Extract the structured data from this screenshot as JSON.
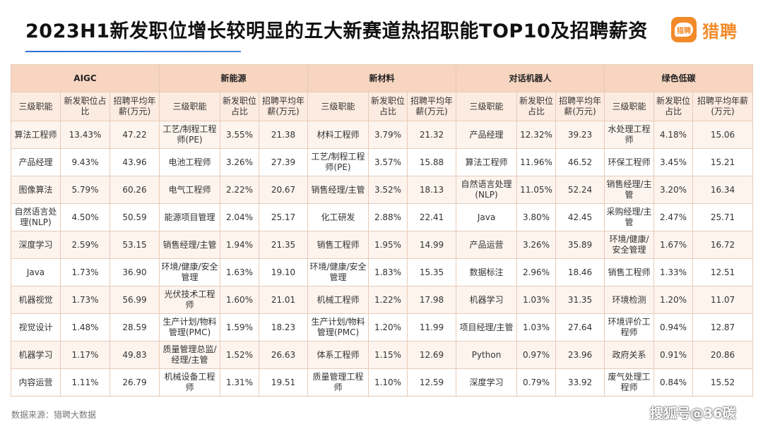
{
  "title": "2023H1新发职位增长较明显的五大新赛道热招职能TOP10及招聘薪资",
  "brand": {
    "logo_text": "猎聘",
    "name": "猎聘",
    "color": "#f28a2a"
  },
  "table": {
    "groups": [
      {
        "name": "AIGC",
        "subheaders": [
          "三级职能",
          "新发职位占比",
          "招聘平均年薪(万元)"
        ],
        "rows": [
          [
            "算法工程师",
            "13.43%",
            "47.22"
          ],
          [
            "产品经理",
            "9.43%",
            "43.96"
          ],
          [
            "图像算法",
            "5.79%",
            "60.26"
          ],
          [
            "自然语言处理(NLP)",
            "4.50%",
            "50.59"
          ],
          [
            "深度学习",
            "2.59%",
            "53.15"
          ],
          [
            "Java",
            "1.73%",
            "36.90"
          ],
          [
            "机器视觉",
            "1.73%",
            "56.99"
          ],
          [
            "视觉设计",
            "1.48%",
            "28.59"
          ],
          [
            "机器学习",
            "1.17%",
            "49.83"
          ],
          [
            "内容运营",
            "1.11%",
            "26.79"
          ]
        ]
      },
      {
        "name": "新能源",
        "subheaders": [
          "三级职能",
          "新发职位占比",
          "招聘平均年薪(万元)"
        ],
        "rows": [
          [
            "工艺/制程工程师(PE)",
            "3.55%",
            "21.38"
          ],
          [
            "电池工程师",
            "3.26%",
            "27.39"
          ],
          [
            "电气工程师",
            "2.22%",
            "20.67"
          ],
          [
            "能源项目管理",
            "2.04%",
            "25.17"
          ],
          [
            "销售经理/主管",
            "1.94%",
            "21.35"
          ],
          [
            "环境/健康/安全管理",
            "1.63%",
            "19.10"
          ],
          [
            "光伏技术工程师",
            "1.60%",
            "21.01"
          ],
          [
            "生产计划/物料管理(PMC)",
            "1.59%",
            "18.23"
          ],
          [
            "质量管理总监/经理/主管",
            "1.52%",
            "26.63"
          ],
          [
            "机械设备工程师",
            "1.31%",
            "19.51"
          ]
        ]
      },
      {
        "name": "新材料",
        "subheaders": [
          "三级职能",
          "新发职位占比",
          "招聘平均年薪(万元)"
        ],
        "rows": [
          [
            "材料工程师",
            "3.79%",
            "21.32"
          ],
          [
            "工艺/制程工程师(PE)",
            "3.57%",
            "15.88"
          ],
          [
            "销售经理/主管",
            "3.52%",
            "18.13"
          ],
          [
            "化工研发",
            "2.88%",
            "22.41"
          ],
          [
            "销售工程师",
            "1.95%",
            "14.99"
          ],
          [
            "环境/健康/安全管理",
            "1.83%",
            "15.35"
          ],
          [
            "机械工程师",
            "1.22%",
            "17.98"
          ],
          [
            "生产计划/物料管理(PMC)",
            "1.20%",
            "11.99"
          ],
          [
            "体系工程师",
            "1.15%",
            "12.69"
          ],
          [
            "质量管理工程师",
            "1.10%",
            "12.59"
          ]
        ]
      },
      {
        "name": "对话机器人",
        "subheaders": [
          "三级职能",
          "新发职位占比",
          "招聘平均年薪(万元)"
        ],
        "rows": [
          [
            "产品经理",
            "12.32%",
            "39.23"
          ],
          [
            "算法工程师",
            "11.96%",
            "46.52"
          ],
          [
            "自然语言处理(NLP)",
            "11.05%",
            "52.24"
          ],
          [
            "Java",
            "3.80%",
            "42.45"
          ],
          [
            "产品运营",
            "3.26%",
            "35.89"
          ],
          [
            "数据标注",
            "2.96%",
            "18.46"
          ],
          [
            "机器学习",
            "1.03%",
            "31.35"
          ],
          [
            "项目经理/主管",
            "1.03%",
            "27.64"
          ],
          [
            "Python",
            "0.97%",
            "23.96"
          ],
          [
            "深度学习",
            "0.79%",
            "33.92"
          ]
        ]
      },
      {
        "name": "绿色低碳",
        "subheaders": [
          "三级职能",
          "新发职位占比",
          "招聘平均年薪(万元)"
        ],
        "rows": [
          [
            "水处理工程师",
            "4.18%",
            "15.06"
          ],
          [
            "环保工程师",
            "3.45%",
            "15.21"
          ],
          [
            "销售经理/主管",
            "3.20%",
            "16.34"
          ],
          [
            "采购经理/主管",
            "2.47%",
            "25.71"
          ],
          [
            "环境/健康/安全管理",
            "1.67%",
            "16.72"
          ],
          [
            "销售工程师",
            "1.33%",
            "12.51"
          ],
          [
            "环境检测",
            "1.20%",
            "11.07"
          ],
          [
            "环境评价工程师",
            "0.94%",
            "12.87"
          ],
          [
            "政府关系",
            "0.91%",
            "20.86"
          ],
          [
            "废气处理工程师",
            "0.84%",
            "15.52"
          ]
        ]
      }
    ]
  },
  "footer": {
    "source": "数据来源：猎聘大数据"
  },
  "watermark": "搜狐号@36碳"
}
